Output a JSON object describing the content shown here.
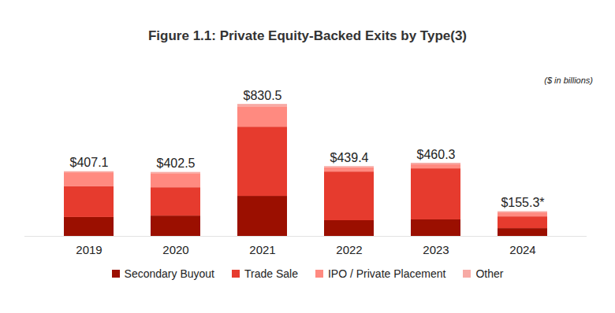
{
  "chart_data": {
    "type": "bar",
    "stacked": true,
    "title": "Figure 1.1: Private Equity-Backed Exits by Type(3)",
    "subtitle": "($ in billions)",
    "categories": [
      "2019",
      "2020",
      "2021",
      "2022",
      "2023",
      "2024"
    ],
    "series": [
      {
        "name": "Secondary Buyout",
        "color": "#9b0f00",
        "values": [
          119,
          128,
          252,
          99,
          104,
          49
        ]
      },
      {
        "name": "Trade Sale",
        "color": "#e63b2e",
        "values": [
          193,
          178,
          435,
          306,
          321,
          74
        ]
      },
      {
        "name": "IPO / Private Placement",
        "color": "#ff8a80",
        "values": [
          88.1,
          88.5,
          128,
          27,
          25,
          25
        ]
      },
      {
        "name": "Other",
        "color": "#f7aaa5",
        "values": [
          7,
          8,
          15.5,
          7.4,
          10.3,
          7.3
        ]
      }
    ],
    "totals": [
      407.1,
      402.5,
      830.5,
      439.4,
      460.3,
      155.3
    ],
    "total_labels": [
      "$407.1",
      "$402.5",
      "$830.5",
      "$439.4",
      "$460.3",
      "$155.3*"
    ],
    "ylim": [
      0,
      940
    ],
    "yticks": [],
    "tick_labels": "x",
    "grid": false
  }
}
